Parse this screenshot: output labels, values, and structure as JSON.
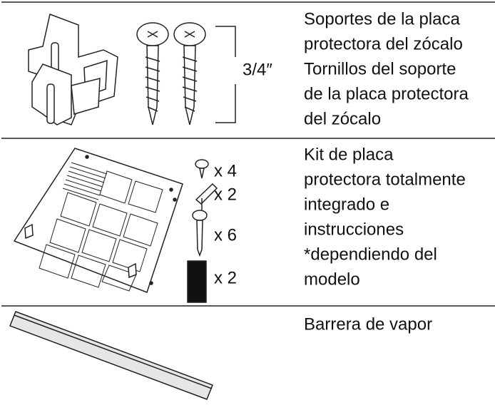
{
  "rows": [
    {
      "description": [
        "Soportes de la placa",
        "protectora del zócalo",
        "Tornillos del soporte",
        "de la placa protectora",
        "del zócalo"
      ],
      "labels": [
        "3/4″"
      ]
    },
    {
      "description": [
        "Kit de placa",
        "protectora totalmente",
        "integrado e",
        "instrucciones",
        "*dependiendo del",
        "modelo"
      ],
      "labels": [
        "x 4",
        "x 2",
        "x 6",
        "x 2"
      ]
    },
    {
      "description": [
        "Barrera de vapor"
      ],
      "labels": []
    }
  ]
}
